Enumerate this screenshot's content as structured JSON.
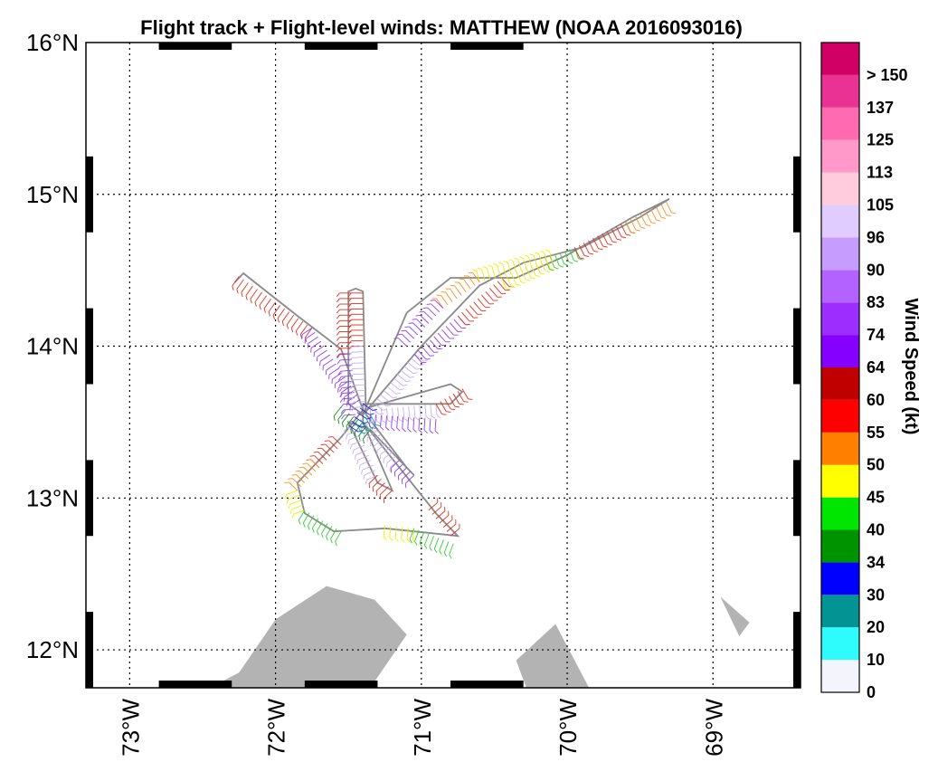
{
  "chart_data": {
    "type": "map",
    "title": "Flight track + Flight-level winds: MATTHEW (NOAA 2016093016)",
    "lon_range": [
      -73.3,
      -68.4
    ],
    "lat_range": [
      11.75,
      16.0
    ],
    "grid": true,
    "lat_ticks": [
      {
        "value": 12,
        "label": "12°N"
      },
      {
        "value": 13,
        "label": "13°N"
      },
      {
        "value": 14,
        "label": "14°N"
      },
      {
        "value": 15,
        "label": "15°N"
      },
      {
        "value": 16,
        "label": "16°N"
      }
    ],
    "lon_ticks": [
      {
        "value": -73,
        "label": "73°W"
      },
      {
        "value": -72,
        "label": "72°W"
      },
      {
        "value": -71,
        "label": "71°W"
      },
      {
        "value": -70,
        "label": "70°W"
      },
      {
        "value": -69,
        "label": "69°W"
      }
    ],
    "land": [
      {
        "name": "land-west",
        "points": [
          [
            -72.45,
            11.75
          ],
          [
            -72.25,
            11.85
          ],
          [
            -72.0,
            12.2
          ],
          [
            -71.65,
            12.42
          ],
          [
            -71.32,
            12.33
          ],
          [
            -71.1,
            12.1
          ],
          [
            -71.35,
            11.75
          ]
        ]
      },
      {
        "name": "land-central",
        "points": [
          [
            -70.35,
            11.93
          ],
          [
            -70.08,
            12.17
          ],
          [
            -69.85,
            11.75
          ],
          [
            -70.28,
            11.75
          ]
        ]
      },
      {
        "name": "land-east",
        "points": [
          [
            -68.95,
            12.35
          ],
          [
            -68.75,
            12.18
          ],
          [
            -68.82,
            12.09
          ]
        ]
      }
    ],
    "flight_track": [
      [
        -72.28,
        14.42
      ],
      [
        -72.22,
        14.48
      ],
      [
        -71.85,
        14.2
      ],
      [
        -71.55,
        13.98
      ],
      [
        -71.4,
        13.58
      ],
      [
        -71.55,
        13.4
      ],
      [
        -71.85,
        13.1
      ],
      [
        -71.8,
        12.9
      ],
      [
        -71.6,
        12.78
      ],
      [
        -71.25,
        12.8
      ],
      [
        -71.05,
        12.78
      ],
      [
        -70.75,
        12.75
      ],
      [
        -70.9,
        12.9
      ],
      [
        -71.4,
        13.5
      ],
      [
        -71.4,
        13.62
      ],
      [
        -70.8,
        13.62
      ],
      [
        -70.72,
        13.7
      ],
      [
        -70.8,
        13.75
      ],
      [
        -71.35,
        13.6
      ],
      [
        -71.4,
        13.55
      ],
      [
        -71.0,
        14.0
      ],
      [
        -70.6,
        14.4
      ],
      [
        -70.3,
        14.55
      ],
      [
        -69.9,
        14.65
      ],
      [
        -69.5,
        14.85
      ],
      [
        -69.3,
        14.97
      ],
      [
        -69.55,
        14.85
      ],
      [
        -70.0,
        14.6
      ],
      [
        -70.35,
        14.45
      ],
      [
        -70.8,
        14.45
      ],
      [
        -71.1,
        14.22
      ],
      [
        -71.4,
        13.55
      ],
      [
        -71.5,
        13.62
      ],
      [
        -71.5,
        14.36
      ],
      [
        -71.45,
        14.38
      ],
      [
        -71.4,
        14.36
      ],
      [
        -71.38,
        13.55
      ],
      [
        -71.3,
        13.45
      ],
      [
        -71.1,
        13.2
      ],
      [
        -71.05,
        13.15
      ],
      [
        -71.35,
        13.45
      ],
      [
        -71.5,
        13.5
      ],
      [
        -71.3,
        13.1
      ],
      [
        -71.2,
        13.05
      ],
      [
        -71.4,
        13.5
      ]
    ],
    "wind_barb_segments": [
      {
        "color": "red",
        "points": [
          [
            -72.25,
            14.46
          ],
          [
            -71.75,
            14.12
          ]
        ]
      },
      {
        "color": "purple",
        "points": [
          [
            -71.75,
            14.12
          ],
          [
            -71.42,
            13.65
          ]
        ]
      },
      {
        "color": "red",
        "points": [
          [
            -71.48,
            14.35
          ],
          [
            -71.48,
            13.95
          ]
        ]
      },
      {
        "color": "purple",
        "points": [
          [
            -71.48,
            13.95
          ],
          [
            -71.45,
            13.55
          ]
        ]
      },
      {
        "color": "red",
        "points": [
          [
            -71.4,
            14.35
          ],
          [
            -71.4,
            14.0
          ]
        ]
      },
      {
        "color": "lavender",
        "points": [
          [
            -71.4,
            14.0
          ],
          [
            -71.38,
            13.6
          ]
        ]
      },
      {
        "color": "lavender",
        "points": [
          [
            -71.35,
            13.58
          ],
          [
            -70.9,
            13.62
          ]
        ]
      },
      {
        "color": "red",
        "points": [
          [
            -70.9,
            13.62
          ],
          [
            -70.72,
            13.72
          ]
        ]
      },
      {
        "color": "purple",
        "points": [
          [
            -71.35,
            13.55
          ],
          [
            -70.9,
            13.52
          ]
        ]
      },
      {
        "color": "lavender",
        "points": [
          [
            -71.35,
            13.6
          ],
          [
            -71.05,
            13.95
          ]
        ]
      },
      {
        "color": "purple",
        "points": [
          [
            -71.05,
            13.95
          ],
          [
            -70.75,
            14.2
          ]
        ]
      },
      {
        "color": "red",
        "points": [
          [
            -70.75,
            14.2
          ],
          [
            -70.45,
            14.45
          ]
        ]
      },
      {
        "color": "yellow",
        "points": [
          [
            -70.45,
            14.45
          ],
          [
            -70.15,
            14.58
          ]
        ]
      },
      {
        "color": "green",
        "points": [
          [
            -70.15,
            14.58
          ],
          [
            -69.95,
            14.65
          ]
        ]
      },
      {
        "color": "red",
        "points": [
          [
            -69.95,
            14.65
          ],
          [
            -69.6,
            14.82
          ]
        ]
      },
      {
        "color": "orange",
        "points": [
          [
            -69.6,
            14.82
          ],
          [
            -69.32,
            14.95
          ]
        ]
      },
      {
        "color": "yellow",
        "points": [
          [
            -70.1,
            14.55
          ],
          [
            -70.6,
            14.42
          ]
        ]
      },
      {
        "color": "orange",
        "points": [
          [
            -70.6,
            14.42
          ],
          [
            -70.85,
            14.25
          ]
        ]
      },
      {
        "color": "purple",
        "points": [
          [
            -70.85,
            14.25
          ],
          [
            -71.1,
            14.0
          ]
        ]
      },
      {
        "color": "lavender",
        "points": [
          [
            -71.35,
            13.5
          ],
          [
            -71.15,
            13.25
          ]
        ]
      },
      {
        "color": "purple",
        "points": [
          [
            -71.15,
            13.25
          ],
          [
            -71.05,
            13.15
          ]
        ]
      },
      {
        "color": "lavender",
        "points": [
          [
            -71.45,
            13.48
          ],
          [
            -71.3,
            13.15
          ]
        ]
      },
      {
        "color": "red",
        "points": [
          [
            -71.3,
            13.15
          ],
          [
            -71.2,
            13.05
          ]
        ]
      },
      {
        "color": "red",
        "points": [
          [
            -71.55,
            13.35
          ],
          [
            -71.7,
            13.2
          ]
        ]
      },
      {
        "color": "orange",
        "points": [
          [
            -71.7,
            13.2
          ],
          [
            -71.85,
            13.05
          ]
        ]
      },
      {
        "color": "yellow",
        "points": [
          [
            -71.85,
            13.05
          ],
          [
            -71.8,
            12.92
          ]
        ]
      },
      {
        "color": "green",
        "points": [
          [
            -71.8,
            12.92
          ],
          [
            -71.55,
            12.78
          ]
        ]
      },
      {
        "color": "yellow",
        "points": [
          [
            -71.25,
            12.82
          ],
          [
            -71.05,
            12.8
          ]
        ]
      },
      {
        "color": "green",
        "points": [
          [
            -71.05,
            12.8
          ],
          [
            -70.78,
            12.7
          ]
        ]
      },
      {
        "color": "red",
        "points": [
          [
            -70.8,
            12.75
          ],
          [
            -70.95,
            12.92
          ]
        ]
      },
      {
        "color": "darkgreen",
        "points": [
          [
            -71.55,
            13.6
          ],
          [
            -71.35,
            13.45
          ]
        ]
      },
      {
        "color": "blue",
        "points": [
          [
            -71.5,
            13.48
          ],
          [
            -71.4,
            13.62
          ]
        ]
      },
      {
        "color": "teal",
        "points": [
          [
            -71.45,
            13.5
          ],
          [
            -71.35,
            13.55
          ]
        ]
      }
    ],
    "colorbar": {
      "title": "Wind Speed (kt)",
      "colors": [
        "#f4f4fc",
        "#2efcfc",
        "#039393",
        "#0000ff",
        "#009300",
        "#00e600",
        "#ffff00",
        "#ff7f00",
        "#ff0000",
        "#c00000",
        "#8600ff",
        "#9d2cff",
        "#b362ff",
        "#c79cff",
        "#e1ccff",
        "#ffccdd",
        "#ff99c9",
        "#ff6ab1",
        "#e93292",
        "#d10064"
      ],
      "labels": [
        "0",
        "10",
        "20",
        "30",
        "34",
        "40",
        "45",
        "50",
        "55",
        "60",
        "64",
        "74",
        "83",
        "90",
        "96",
        "105",
        "113",
        "125",
        "137",
        "> 150"
      ]
    },
    "series_colors": {
      "track": "#8a8a8a",
      "land": "#b3b3b3",
      "red": "#e03020",
      "orange": "#ff9020",
      "yellow": "#eeee00",
      "green": "#30d030",
      "darkgreen": "#109010",
      "blue": "#2020f0",
      "teal": "#10a0a0",
      "purple": "#9040f0",
      "lavender": "#c8b0f0"
    }
  }
}
